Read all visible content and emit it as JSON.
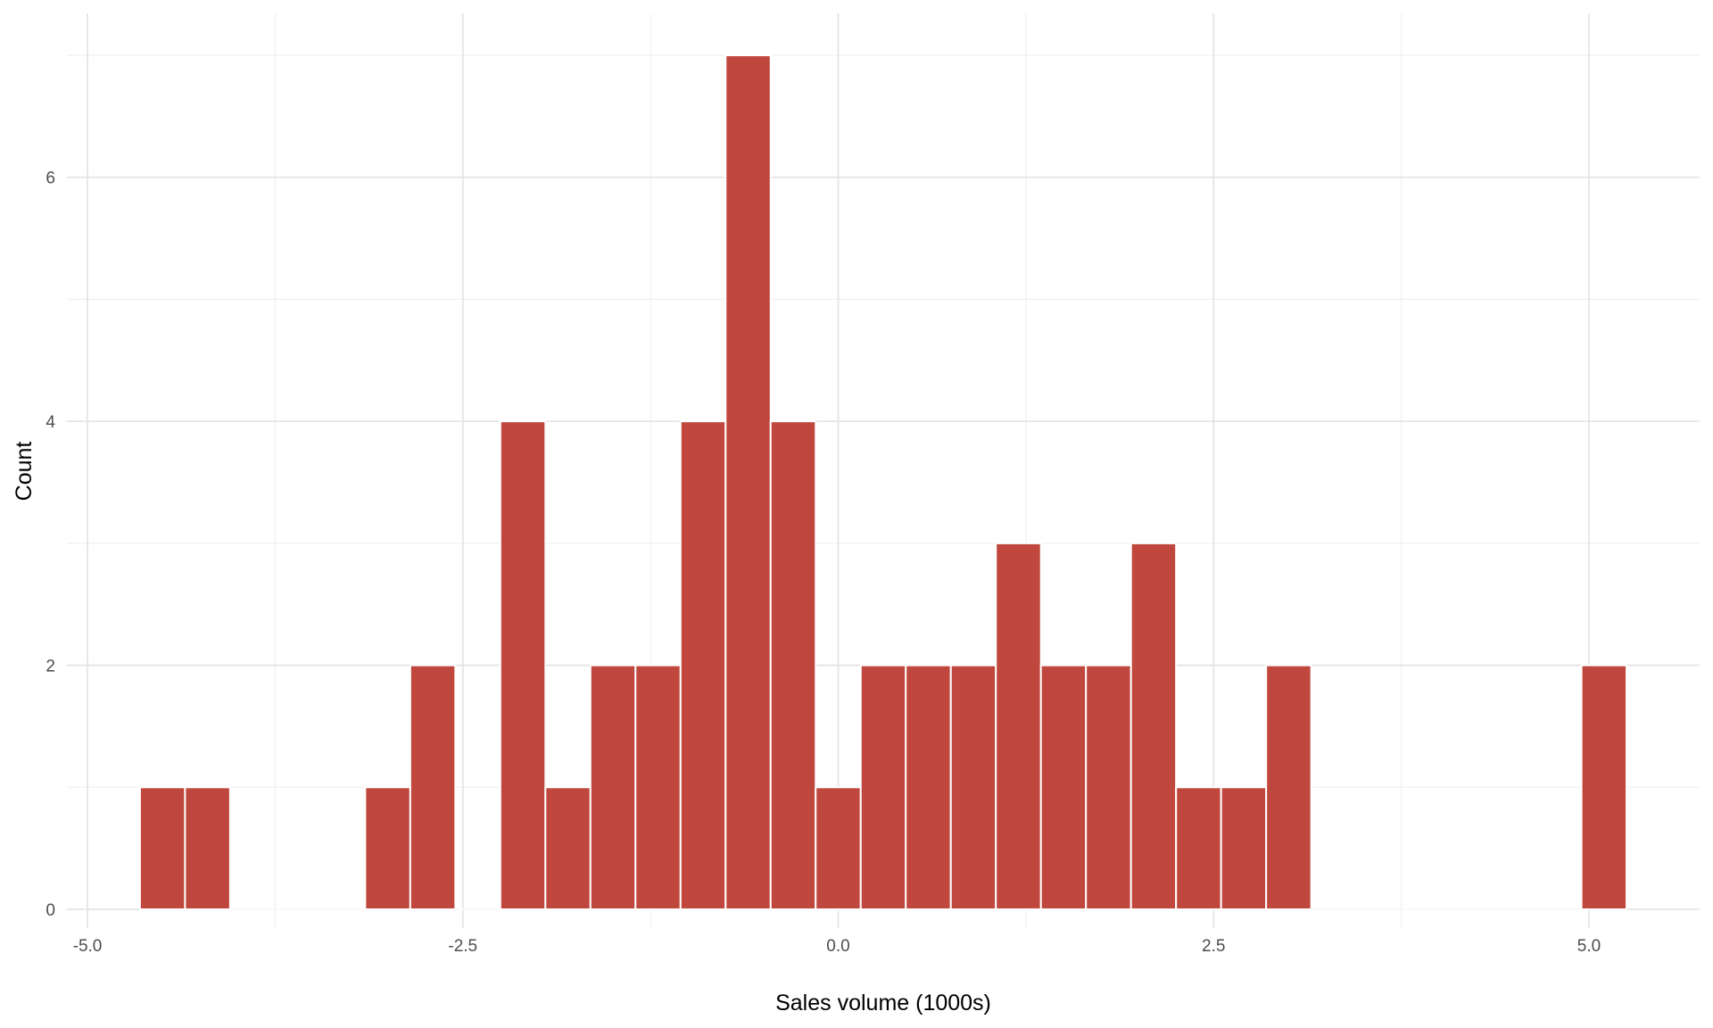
{
  "chart_data": {
    "type": "bar",
    "title": "",
    "xlabel": "Sales volume (1000s)",
    "ylabel": "Count",
    "xlim": [
      -5.0,
      5.5
    ],
    "ylim": [
      0,
      7
    ],
    "x_ticks": [
      -5.0,
      -2.5,
      0.0,
      2.5,
      5.0
    ],
    "x_tick_labels": [
      "-5.0",
      "-2.5",
      "0.0",
      "2.5",
      "5.0"
    ],
    "y_ticks": [
      0,
      2,
      4,
      6
    ],
    "y_tick_labels": [
      "0",
      "2",
      "4",
      "6"
    ],
    "grid": true,
    "bin_width": 0.3,
    "bins": [
      {
        "x_start": -4.65,
        "x_end": -4.35,
        "count": 1
      },
      {
        "x_start": -4.35,
        "x_end": -4.05,
        "count": 1
      },
      {
        "x_start": -4.05,
        "x_end": -3.75,
        "count": 0
      },
      {
        "x_start": -3.75,
        "x_end": -3.45,
        "count": 0
      },
      {
        "x_start": -3.45,
        "x_end": -3.15,
        "count": 0
      },
      {
        "x_start": -3.15,
        "x_end": -2.85,
        "count": 1
      },
      {
        "x_start": -2.85,
        "x_end": -2.55,
        "count": 2
      },
      {
        "x_start": -2.55,
        "x_end": -2.25,
        "count": 0
      },
      {
        "x_start": -2.25,
        "x_end": -1.95,
        "count": 4
      },
      {
        "x_start": -1.95,
        "x_end": -1.65,
        "count": 1
      },
      {
        "x_start": -1.65,
        "x_end": -1.35,
        "count": 2
      },
      {
        "x_start": -1.35,
        "x_end": -1.05,
        "count": 2
      },
      {
        "x_start": -1.05,
        "x_end": -0.75,
        "count": 4
      },
      {
        "x_start": -0.75,
        "x_end": -0.45,
        "count": 7
      },
      {
        "x_start": -0.45,
        "x_end": -0.15,
        "count": 4
      },
      {
        "x_start": -0.15,
        "x_end": 0.15,
        "count": 1
      },
      {
        "x_start": 0.15,
        "x_end": 0.45,
        "count": 2
      },
      {
        "x_start": 0.45,
        "x_end": 0.75,
        "count": 2
      },
      {
        "x_start": 0.75,
        "x_end": 1.05,
        "count": 2
      },
      {
        "x_start": 1.05,
        "x_end": 1.35,
        "count": 3
      },
      {
        "x_start": 1.35,
        "x_end": 1.65,
        "count": 2
      },
      {
        "x_start": 1.65,
        "x_end": 1.95,
        "count": 2
      },
      {
        "x_start": 1.95,
        "x_end": 2.25,
        "count": 3
      },
      {
        "x_start": 2.25,
        "x_end": 2.55,
        "count": 1
      },
      {
        "x_start": 2.55,
        "x_end": 2.85,
        "count": 1
      },
      {
        "x_start": 2.85,
        "x_end": 3.15,
        "count": 2
      },
      {
        "x_start": 3.15,
        "x_end": 3.45,
        "count": 0
      },
      {
        "x_start": 3.45,
        "x_end": 3.75,
        "count": 0
      },
      {
        "x_start": 3.75,
        "x_end": 4.05,
        "count": 0
      },
      {
        "x_start": 4.05,
        "x_end": 4.35,
        "count": 0
      },
      {
        "x_start": 4.35,
        "x_end": 4.65,
        "count": 0
      },
      {
        "x_start": 4.65,
        "x_end": 4.95,
        "count": 0
      },
      {
        "x_start": 4.95,
        "x_end": 5.25,
        "count": 2
      }
    ],
    "colors": {
      "bar_fill": "#c0473d",
      "bar_outline": "#ffffff",
      "grid_major": "#e5e5e5",
      "grid_minor": "#f0f0f0",
      "zero_fill": "#fafafa"
    }
  }
}
